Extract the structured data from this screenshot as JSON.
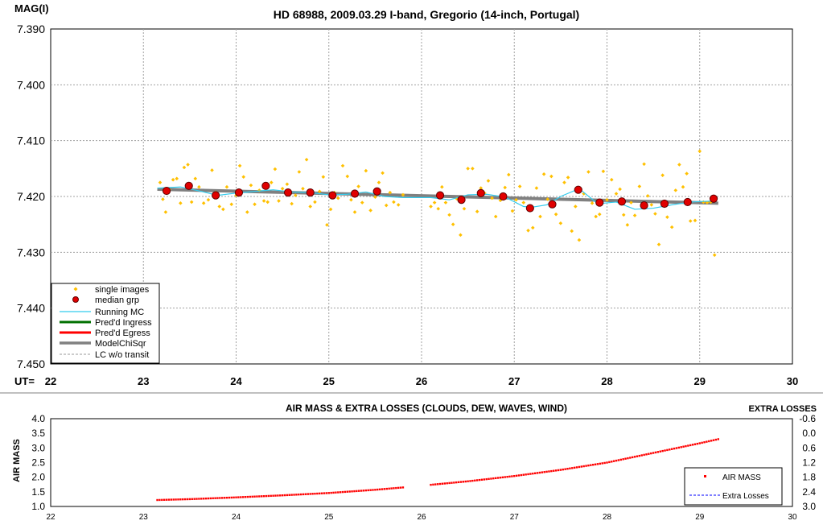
{
  "top_chart": {
    "y_axis_title": "MAG(I)",
    "x_axis_prefix": "UT=",
    "legend": {
      "single": "single images",
      "median": "median grp",
      "running": "Running MC",
      "ingress": "Pred'd Ingress",
      "egress": "Pred'd Egress",
      "model": "ModelChiSqr",
      "lc": "LC w/o transit"
    }
  },
  "bottom_chart": {
    "title": "AIR MASS & EXTRA LOSSES (CLOUDS, DEW, WAVES, WIND)",
    "y_axis_title": "AIR MASS",
    "y2_axis_title": "EXTRA LOSSES",
    "legend": {
      "airmass": "AIR MASS",
      "extra": "Extra Losses"
    }
  },
  "colors": {
    "single": "#ffc000",
    "median_fill": "#e00000",
    "median_edge": "#600000",
    "running": "#33ccee",
    "ingress": "#007000",
    "egress": "#ff0000",
    "model": "#808080",
    "airmass": "#ff0000",
    "extra": "#0000ff"
  },
  "chart_data": [
    {
      "type": "scatter",
      "title": "HD 68988, 2009.03.29 I-band, Gregorio (14-inch, Portugal)",
      "xlabel": "UT",
      "ylabel": "MAG(I)",
      "xlim": [
        22,
        30
      ],
      "ylim": [
        7.39,
        7.45
      ],
      "y_inverted": true,
      "grid": true,
      "legend_position": "bottom-left",
      "x_ticks": [
        22,
        23,
        24,
        25,
        26,
        27,
        28,
        29,
        30
      ],
      "y_ticks": [
        7.39,
        7.4,
        7.41,
        7.42,
        7.43,
        7.44,
        7.45
      ],
      "y_tick_labels": [
        "7.390",
        "7.400",
        "7.410",
        "7.420",
        "7.430",
        "7.440",
        "7.450"
      ],
      "series": [
        {
          "name": "single images",
          "type": "scatter",
          "x": [
            23.18,
            23.21,
            23.24,
            23.28,
            23.32,
            23.36,
            23.4,
            23.44,
            23.48,
            23.52,
            23.56,
            23.6,
            23.65,
            23.7,
            23.74,
            23.78,
            23.82,
            23.86,
            23.9,
            23.95,
            24.0,
            24.04,
            24.08,
            24.12,
            24.16,
            24.2,
            24.25,
            24.3,
            24.34,
            24.38,
            24.42,
            24.46,
            24.5,
            24.55,
            24.6,
            24.64,
            24.68,
            24.72,
            24.76,
            24.8,
            24.85,
            24.9,
            24.94,
            24.98,
            25.02,
            25.06,
            25.1,
            25.15,
            25.2,
            25.24,
            25.28,
            25.32,
            25.36,
            25.4,
            25.45,
            25.5,
            25.54,
            25.58,
            25.62,
            25.66,
            25.7,
            25.75,
            25.8,
            26.1,
            26.14,
            26.18,
            26.22,
            26.26,
            26.3,
            26.34,
            26.38,
            26.42,
            26.46,
            26.5,
            26.55,
            26.6,
            26.64,
            26.68,
            26.72,
            26.76,
            26.8,
            26.85,
            26.9,
            26.94,
            26.98,
            27.02,
            27.06,
            27.1,
            27.15,
            27.2,
            27.24,
            27.28,
            27.32,
            27.36,
            27.4,
            27.45,
            27.5,
            27.54,
            27.58,
            27.62,
            27.66,
            27.7,
            27.75,
            27.8,
            27.84,
            27.88,
            27.92,
            27.96,
            28.0,
            28.05,
            28.1,
            28.14,
            28.18,
            28.22,
            28.26,
            28.3,
            28.35,
            28.4,
            28.44,
            28.48,
            28.52,
            28.56,
            28.6,
            28.65,
            28.7,
            28.74,
            28.78,
            28.82,
            28.86,
            28.9,
            28.95,
            29.0,
            29.04,
            29.08,
            29.12,
            29.16
          ],
          "y": [
            7.4175,
            7.4205,
            7.4228,
            7.4188,
            7.417,
            7.4168,
            7.4212,
            7.4148,
            7.4143,
            7.421,
            7.4168,
            7.4183,
            7.4212,
            7.4206,
            7.4153,
            7.4193,
            7.4218,
            7.4223,
            7.4183,
            7.4214,
            7.4198,
            7.4145,
            7.4165,
            7.4228,
            7.418,
            7.4214,
            7.4189,
            7.4208,
            7.421,
            7.4175,
            7.4151,
            7.4208,
            7.4186,
            7.4178,
            7.4213,
            7.4198,
            7.4156,
            7.4186,
            7.4134,
            7.4218,
            7.421,
            7.4191,
            7.4165,
            7.4251,
            7.4223,
            7.4193,
            7.4203,
            7.4145,
            7.4164,
            7.4206,
            7.4228,
            7.4182,
            7.4211,
            7.4154,
            7.4225,
            7.4201,
            7.4175,
            7.4158,
            7.4216,
            7.4193,
            7.421,
            7.4215,
            7.4197,
            7.4218,
            7.4211,
            7.4222,
            7.4183,
            7.4211,
            7.4233,
            7.425,
            7.4204,
            7.4269,
            7.4222,
            7.415,
            7.415,
            7.4227,
            7.4185,
            7.4194,
            7.4172,
            7.4203,
            7.4236,
            7.4207,
            7.4184,
            7.4161,
            7.4226,
            7.4206,
            7.4182,
            7.4211,
            7.4261,
            7.4256,
            7.4185,
            7.4236,
            7.416,
            7.4205,
            7.4164,
            7.4232,
            7.4248,
            7.4175,
            7.4166,
            7.4262,
            7.4218,
            7.4278,
            7.4195,
            7.4156,
            7.4212,
            7.4236,
            7.4232,
            7.4155,
            7.4206,
            7.417,
            7.4195,
            7.4187,
            7.4233,
            7.4251,
            7.4211,
            7.4234,
            7.4182,
            7.4142,
            7.4199,
            7.4215,
            7.4231,
            7.4286,
            7.4162,
            7.4237,
            7.4255,
            7.4189,
            7.4143,
            7.4183,
            7.4159,
            7.4244,
            7.4243,
            7.4119,
            7.421,
            7.4211,
            7.421,
            7.4305
          ]
        },
        {
          "name": "median grp",
          "type": "scatter",
          "x": [
            23.25,
            23.49,
            23.78,
            24.03,
            24.32,
            24.56,
            24.8,
            25.04,
            25.28,
            25.52,
            26.2,
            26.43,
            26.64,
            26.88,
            27.17,
            27.41,
            27.69,
            27.92,
            28.16,
            28.4,
            28.62,
            28.87,
            29.15
          ],
          "y": [
            7.419,
            7.4181,
            7.4198,
            7.4193,
            7.4181,
            7.4193,
            7.4193,
            7.4198,
            7.4195,
            7.4191,
            7.4198,
            7.4206,
            7.4194,
            7.42,
            7.4221,
            7.4214,
            7.4188,
            7.4211,
            7.4209,
            7.4216,
            7.4213,
            7.421,
            7.4204
          ]
        },
        {
          "name": "Running MC",
          "type": "line",
          "x": [
            23.15,
            23.4,
            23.6,
            23.8,
            24.0,
            24.2,
            24.4,
            24.6,
            24.8,
            25.0,
            25.2,
            25.4,
            25.6,
            25.8,
            26.1,
            26.3,
            26.5,
            26.7,
            26.9,
            27.1,
            27.2,
            27.35,
            27.5,
            27.7,
            27.9,
            28.1,
            28.3,
            28.5,
            28.7,
            28.9,
            29.15
          ],
          "y": [
            7.4185,
            7.4183,
            7.419,
            7.4198,
            7.4194,
            7.4191,
            7.4188,
            7.4192,
            7.4193,
            7.4197,
            7.4196,
            7.4192,
            7.42,
            7.4202,
            7.4202,
            7.4206,
            7.4197,
            7.4196,
            7.4201,
            7.4218,
            7.4219,
            7.4215,
            7.42,
            7.4186,
            7.4213,
            7.421,
            7.4223,
            7.4221,
            7.4215,
            7.421,
            7.4208
          ]
        },
        {
          "name": "ModelChiSqr",
          "type": "line",
          "x": [
            23.15,
            29.2
          ],
          "y": [
            7.4187,
            7.4212
          ]
        }
      ]
    },
    {
      "type": "scatter",
      "title": "AIR MASS & EXTRA LOSSES (CLOUDS, DEW, WAVES, WIND)",
      "ylabel": "AIR MASS",
      "y2label": "EXTRA LOSSES",
      "xlim": [
        22,
        30
      ],
      "ylim": [
        1.0,
        4.0
      ],
      "y2lim": [
        -0.6,
        3.0
      ],
      "y2_inverted": true,
      "legend_position": "bottom-right",
      "x_ticks": [
        22,
        23,
        24,
        25,
        26,
        27,
        28,
        29,
        30
      ],
      "y_ticks": [
        1.0,
        1.5,
        2.0,
        2.5,
        3.0,
        3.5,
        4.0
      ],
      "y_tick_labels": [
        "1.0",
        "1.5",
        "2.0",
        "2.5",
        "3.0",
        "3.5",
        "4.0"
      ],
      "y2_ticks": [
        -0.6,
        0.0,
        0.6,
        1.2,
        1.8,
        2.4,
        3.0
      ],
      "y2_tick_labels": [
        "-0.6",
        "0.0",
        "0.6",
        "1.2",
        "1.8",
        "2.4",
        "3.0"
      ],
      "series": [
        {
          "name": "AIR MASS",
          "type": "scatter",
          "x": [
            23.15,
            23.5,
            24.0,
            24.5,
            25.0,
            25.5,
            25.8,
            26.1,
            26.5,
            27.0,
            27.5,
            28.0,
            28.5,
            29.0,
            29.2
          ],
          "y": [
            1.22,
            1.25,
            1.31,
            1.38,
            1.46,
            1.57,
            1.65,
            1.74,
            1.86,
            2.04,
            2.25,
            2.5,
            2.83,
            3.16,
            3.3
          ]
        },
        {
          "name": "Extra Losses",
          "type": "line",
          "x": [],
          "y": []
        }
      ]
    }
  ]
}
